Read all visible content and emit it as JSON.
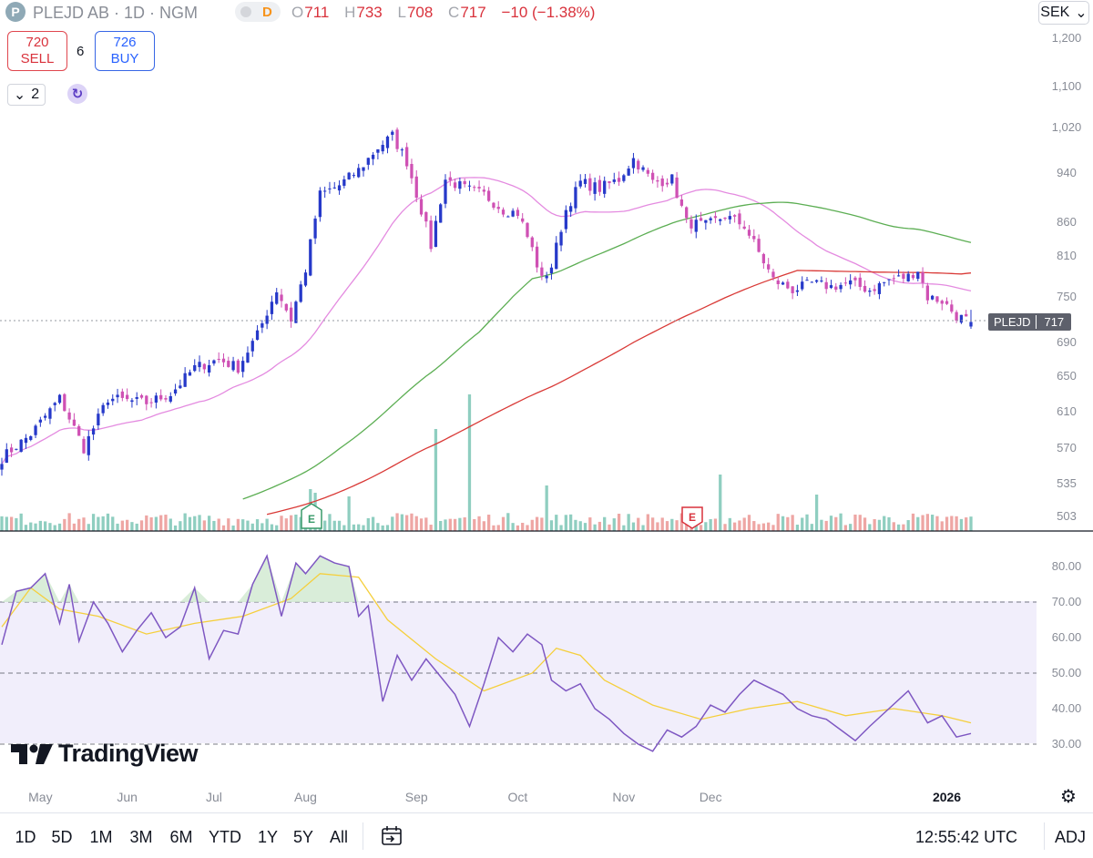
{
  "header": {
    "logo_letter": "P",
    "symbol": "PLEJD AB · 1D · NGM",
    "badge_letter": "D",
    "ohlc": {
      "o_label": "O",
      "o": "711",
      "h_label": "H",
      "h": "733",
      "l_label": "L",
      "l": "708",
      "c_label": "C",
      "c": "717",
      "change": "−10 (−1.38%)"
    },
    "currency": "SEK"
  },
  "trade": {
    "sell_price": "720",
    "sell_label": "SELL",
    "spread": "6",
    "buy_price": "726",
    "buy_label": "BUY"
  },
  "indicators_toggle": {
    "count": "2",
    "chevron": "⌄"
  },
  "price_tag": {
    "symbol": "PLEJD",
    "price": "717"
  },
  "price_axis": [
    "1,200",
    "1,100",
    "1,020",
    "940",
    "860",
    "810",
    "750",
    "690",
    "650",
    "610",
    "570",
    "535",
    "503"
  ],
  "rsi_axis": [
    "80.00",
    "70.00",
    "60.00",
    "50.00",
    "40.00",
    "30.00"
  ],
  "months": [
    "May",
    "Jun",
    "Jul",
    "Aug",
    "Sep",
    "Oct",
    "Nov",
    "Dec",
    "2026"
  ],
  "watermark": "TradingView",
  "bottom_bar": {
    "ranges": [
      "1D",
      "5D",
      "1M",
      "3M",
      "6M",
      "YTD",
      "1Y",
      "5Y",
      "All"
    ],
    "time": "12:55:42 UTC",
    "adj": "ADJ"
  },
  "colors": {
    "up": "#2639c9",
    "down": "#cf51b4",
    "ma_pink": "#e48be0",
    "ma_green": "#5cae53",
    "ma_red": "#d93a37",
    "rsi_line": "#7e57c2",
    "rsi_ma": "#f5cf3c",
    "vol_up": "#8fcec0",
    "vol_down": "#eea6a4"
  },
  "chart_data": [
    {
      "type": "candlestick",
      "title": "PLEJD AB · 1D · NGM",
      "currency": "SEK",
      "ylim": [
        503,
        1200
      ],
      "x_ticks": [
        "May",
        "Jun",
        "Jul",
        "Aug",
        "Sep",
        "Oct",
        "Nov",
        "Dec",
        "2026"
      ],
      "last": {
        "open": 711,
        "high": 733,
        "low": 708,
        "close": 717,
        "change": -10,
        "change_pct": -1.38
      },
      "anchors": [
        {
          "d": 0,
          "c": 560
        },
        {
          "d": 6,
          "c": 585
        },
        {
          "d": 12,
          "c": 625
        },
        {
          "d": 17,
          "c": 570
        },
        {
          "d": 22,
          "c": 625
        },
        {
          "d": 30,
          "c": 620
        },
        {
          "d": 35,
          "c": 630
        },
        {
          "d": 40,
          "c": 660
        },
        {
          "d": 45,
          "c": 670
        },
        {
          "d": 49,
          "c": 660
        },
        {
          "d": 53,
          "c": 700
        },
        {
          "d": 57,
          "c": 760
        },
        {
          "d": 60,
          "c": 720
        },
        {
          "d": 63,
          "c": 790
        },
        {
          "d": 66,
          "c": 905
        },
        {
          "d": 70,
          "c": 920
        },
        {
          "d": 74,
          "c": 945
        },
        {
          "d": 78,
          "c": 985
        },
        {
          "d": 81,
          "c": 1005
        },
        {
          "d": 84,
          "c": 960
        },
        {
          "d": 87,
          "c": 880
        },
        {
          "d": 89,
          "c": 825
        },
        {
          "d": 92,
          "c": 930
        },
        {
          "d": 96,
          "c": 915
        },
        {
          "d": 100,
          "c": 905
        },
        {
          "d": 104,
          "c": 880
        },
        {
          "d": 107,
          "c": 875
        },
        {
          "d": 110,
          "c": 820
        },
        {
          "d": 112,
          "c": 775
        },
        {
          "d": 114,
          "c": 795
        },
        {
          "d": 117,
          "c": 880
        },
        {
          "d": 120,
          "c": 925
        },
        {
          "d": 124,
          "c": 915
        },
        {
          "d": 128,
          "c": 930
        },
        {
          "d": 131,
          "c": 965
        },
        {
          "d": 135,
          "c": 925
        },
        {
          "d": 139,
          "c": 930
        },
        {
          "d": 142,
          "c": 860
        },
        {
          "d": 146,
          "c": 855
        },
        {
          "d": 150,
          "c": 870
        },
        {
          "d": 154,
          "c": 855
        },
        {
          "d": 157,
          "c": 815
        },
        {
          "d": 160,
          "c": 775
        },
        {
          "d": 164,
          "c": 760
        },
        {
          "d": 168,
          "c": 770
        },
        {
          "d": 172,
          "c": 765
        },
        {
          "d": 176,
          "c": 770
        },
        {
          "d": 180,
          "c": 760
        },
        {
          "d": 184,
          "c": 775
        },
        {
          "d": 188,
          "c": 780
        },
        {
          "d": 190,
          "c": 790
        },
        {
          "d": 192,
          "c": 750
        },
        {
          "d": 195,
          "c": 745
        },
        {
          "d": 198,
          "c": 725
        },
        {
          "d": 201,
          "c": 717
        }
      ]
    },
    {
      "type": "line",
      "title": "RSI",
      "ylim": [
        25,
        85
      ],
      "levels": [
        70,
        50,
        30
      ],
      "series": [
        {
          "values": [
            [
              0,
              58
            ],
            [
              3,
              73
            ],
            [
              6,
              74
            ],
            [
              9,
              78
            ],
            [
              12,
              64
            ],
            [
              14,
              75
            ],
            [
              16,
              59
            ],
            [
              19,
              70
            ],
            [
              22,
              64
            ],
            [
              25,
              56
            ],
            [
              28,
              62
            ],
            [
              31,
              67
            ],
            [
              34,
              60
            ],
            [
              37,
              63
            ],
            [
              40,
              74
            ],
            [
              43,
              54
            ],
            [
              46,
              62
            ],
            [
              49,
              61
            ],
            [
              52,
              75
            ],
            [
              55,
              83
            ],
            [
              58,
              66
            ],
            [
              61,
              81
            ],
            [
              63,
              78
            ],
            [
              66,
              83
            ],
            [
              69,
              81
            ],
            [
              72,
              80
            ],
            [
              74,
              66
            ],
            [
              76,
              69
            ],
            [
              79,
              42
            ],
            [
              82,
              55
            ],
            [
              85,
              48
            ],
            [
              88,
              54
            ],
            [
              91,
              49
            ],
            [
              94,
              44
            ],
            [
              97,
              35
            ],
            [
              100,
              47
            ],
            [
              103,
              60
            ],
            [
              106,
              56
            ],
            [
              109,
              61
            ],
            [
              112,
              58
            ],
            [
              114,
              48
            ],
            [
              117,
              45
            ],
            [
              120,
              47
            ],
            [
              123,
              40
            ],
            [
              126,
              37
            ],
            [
              129,
              33
            ],
            [
              132,
              30
            ],
            [
              135,
              28
            ],
            [
              138,
              34
            ],
            [
              141,
              32
            ],
            [
              144,
              35
            ],
            [
              147,
              41
            ],
            [
              150,
              39
            ],
            [
              153,
              44
            ],
            [
              156,
              48
            ],
            [
              159,
              46
            ],
            [
              162,
              44
            ],
            [
              165,
              40
            ],
            [
              168,
              38
            ],
            [
              171,
              37
            ],
            [
              174,
              34
            ],
            [
              177,
              31
            ],
            [
              180,
              35
            ],
            [
              184,
              40
            ],
            [
              188,
              45
            ],
            [
              192,
              36
            ],
            [
              195,
              38
            ],
            [
              198,
              32
            ],
            [
              201,
              33
            ]
          ]
        },
        {
          "values": [
            [
              0,
              63
            ],
            [
              6,
              74
            ],
            [
              12,
              68
            ],
            [
              20,
              66
            ],
            [
              30,
              61
            ],
            [
              40,
              64
            ],
            [
              50,
              66
            ],
            [
              60,
              71
            ],
            [
              66,
              78
            ],
            [
              74,
              77
            ],
            [
              80,
              65
            ],
            [
              90,
              54
            ],
            [
              100,
              45
            ],
            [
              110,
              50
            ],
            [
              115,
              57
            ],
            [
              120,
              55
            ],
            [
              125,
              48
            ],
            [
              135,
              41
            ],
            [
              145,
              37
            ],
            [
              155,
              40
            ],
            [
              165,
              42
            ],
            [
              175,
              38
            ],
            [
              185,
              40
            ],
            [
              195,
              38
            ],
            [
              201,
              36
            ]
          ]
        }
      ]
    }
  ]
}
